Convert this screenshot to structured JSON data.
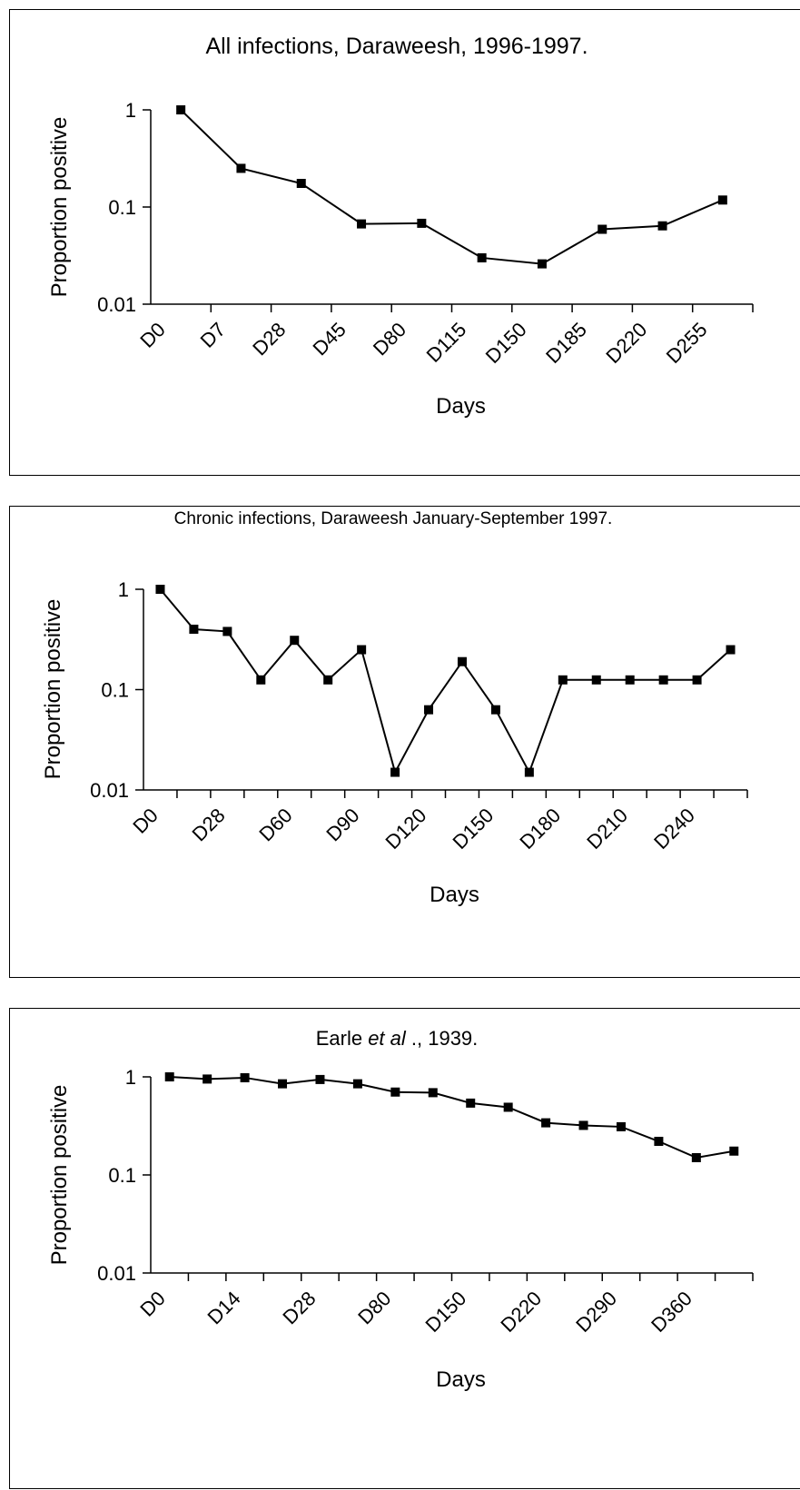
{
  "chart_data": [
    {
      "type": "line",
      "title": "All infections, Daraweesh, 1996-1997.",
      "xlabel": "Days",
      "ylabel": "Proportion positive",
      "yscale": "log",
      "ylim": [
        0.01,
        1
      ],
      "ytick_labels": [
        "0.01",
        "0.1",
        "1"
      ],
      "categories": [
        "D0",
        "D7",
        "D28",
        "D45",
        "D80",
        "D115",
        "D150",
        "D185",
        "D220",
        "D255"
      ],
      "values": [
        1,
        0.25,
        0.175,
        0.067,
        0.068,
        0.03,
        0.026,
        0.059,
        0.064,
        0.118
      ],
      "grid": false
    },
    {
      "type": "line",
      "title": "Chronic infections, Daraweesh January-September 1997.",
      "xlabel": "Days",
      "ylabel": "Proportion positive",
      "yscale": "log",
      "ylim": [
        0.01,
        1
      ],
      "ytick_labels": [
        "0.01",
        "0.1",
        "1"
      ],
      "categories": [
        "D0",
        "",
        "D28",
        "",
        "D60",
        "",
        "D90",
        "",
        "D120",
        "",
        "D150",
        "",
        "D180",
        "",
        "D210",
        "",
        "D240",
        ""
      ],
      "values": [
        1,
        0.4,
        0.38,
        0.125,
        0.31,
        0.125,
        0.25,
        0.015,
        0.063,
        0.19,
        0.063,
        0.015,
        0.125,
        0.125,
        0.125,
        0.125,
        0.125,
        0.25
      ],
      "grid": false
    },
    {
      "type": "line",
      "title": "Earle et al ., 1939.",
      "title_parts": [
        "Earle ",
        "et al",
        " .,  1939."
      ],
      "xlabel": "Days",
      "ylabel": "Proportion positive",
      "yscale": "log",
      "ylim": [
        0.01,
        1
      ],
      "ytick_labels": [
        "0.01",
        "0.1",
        "1"
      ],
      "categories": [
        "D0",
        "",
        "D14",
        "",
        "D28",
        "",
        "D80",
        "",
        "D150",
        "",
        "D220",
        "",
        "D290",
        "",
        "D360",
        ""
      ],
      "values": [
        1,
        0.95,
        0.98,
        0.85,
        0.94,
        0.85,
        0.7,
        0.69,
        0.54,
        0.49,
        0.34,
        0.32,
        0.31,
        0.22,
        0.15,
        0.175
      ],
      "grid": false
    }
  ]
}
